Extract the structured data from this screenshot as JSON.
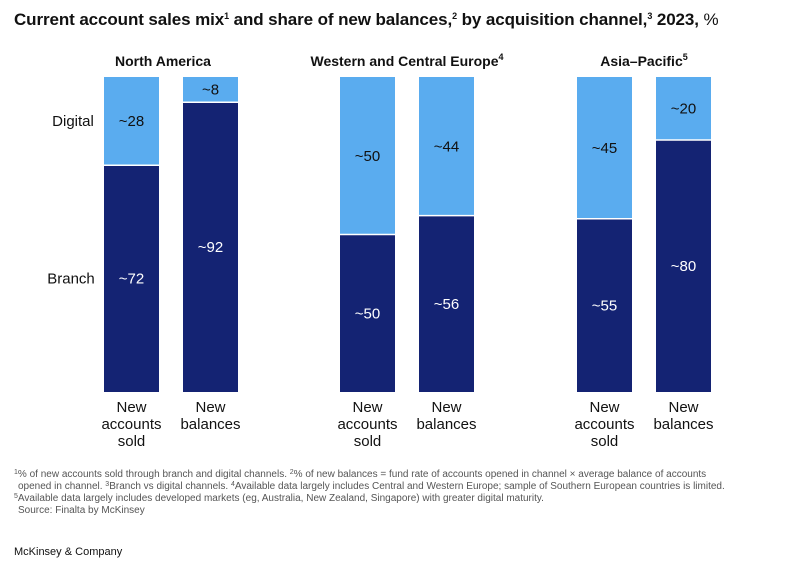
{
  "title": {
    "main": "Current account sales mix",
    "sup1": "1",
    "part2": " and share of new balances,",
    "sup2": "2",
    "part3": " by acquisition channel,",
    "sup3": "3",
    "part4": " 2023,",
    "unit": " %"
  },
  "colors": {
    "digital": "#5aacef",
    "branch": "#142373",
    "label_on_dark": "#ffffff",
    "label_on_light": "#111111"
  },
  "chart_data": {
    "type": "bar",
    "stacked": true,
    "normalized_to": 100,
    "row_labels": {
      "digital": "Digital",
      "branch": "Branch"
    },
    "categories": [
      "New accounts sold",
      "New balances"
    ],
    "category_label_lines": [
      [
        "New",
        "accounts",
        "sold"
      ],
      [
        "New",
        "balances"
      ]
    ],
    "panels": [
      {
        "name": "North America",
        "sup": "",
        "digital": [
          28,
          8
        ],
        "branch": [
          72,
          92
        ]
      },
      {
        "name": "Western and Central Europe",
        "sup": "4",
        "digital": [
          50,
          44
        ],
        "branch": [
          50,
          56
        ]
      },
      {
        "name": "Asia–Pacific",
        "sup": "5",
        "digital": [
          45,
          20
        ],
        "branch": [
          55,
          80
        ]
      }
    ],
    "value_prefix": "~"
  },
  "footnotes": [
    {
      "sup": "1",
      "text": "% of new accounts sold through branch and digital channels. "
    },
    {
      "sup": "2",
      "text": "% of new balances = fund rate of accounts opened in channel × average balance of accounts"
    },
    {
      "sup": "",
      "text": "opened in channel. "
    },
    {
      "sup": "3",
      "text": "Branch vs digital channels. "
    },
    {
      "sup": "4",
      "text": "Available data largely includes Central and Western Europe; sample of Southern European countries is limited."
    },
    {
      "sup": "5",
      "text": "Available data largely includes developed markets (eg, Australia, New Zealand, Singapore) with greater digital maturity."
    },
    {
      "sup": "",
      "text": "Source: Finalta by McKinsey"
    }
  ],
  "brand": "McKinsey & Company"
}
